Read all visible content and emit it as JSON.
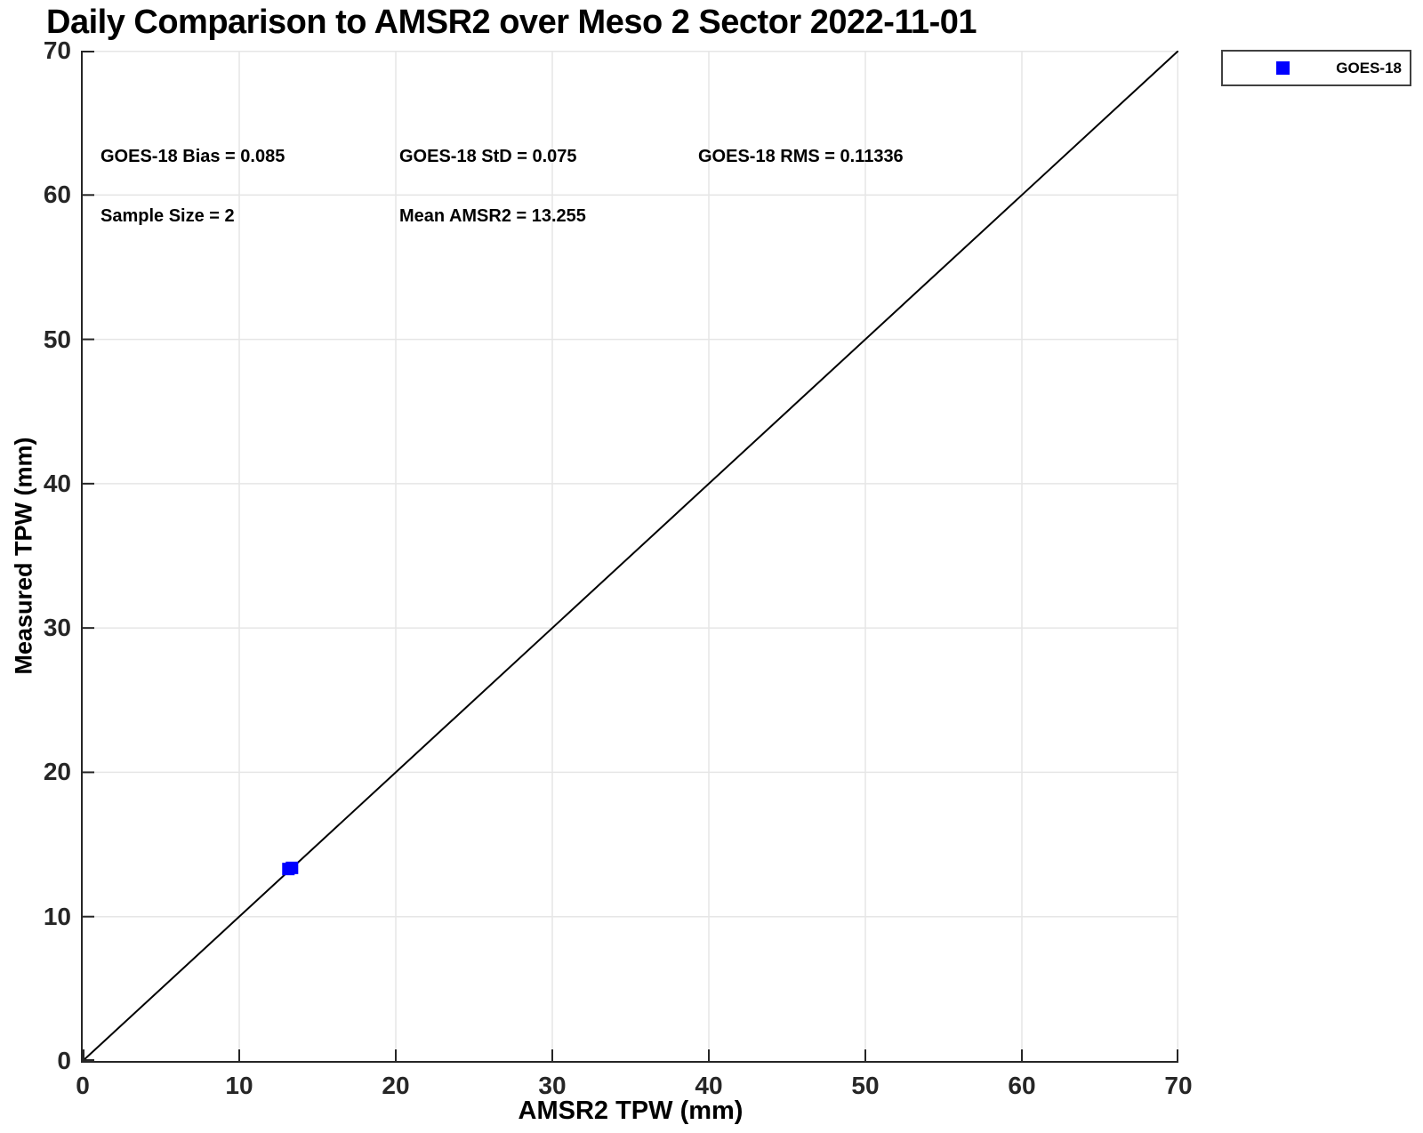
{
  "chart_data": {
    "type": "scatter",
    "title": "Daily Comparison to AMSR2 over Meso 2 Sector 2022-11-01",
    "xlabel": "AMSR2 TPW (mm)",
    "ylabel": "Measured TPW (mm)",
    "xlim": [
      0,
      70
    ],
    "ylim": [
      0,
      70
    ],
    "xticks": [
      0,
      10,
      20,
      30,
      40,
      50,
      60,
      70
    ],
    "yticks": [
      0,
      10,
      20,
      30,
      40,
      50,
      60,
      70
    ],
    "grid": true,
    "series": [
      {
        "name": "GOES-18",
        "marker": "square",
        "color": "#0000ff",
        "points": [
          [
            13.14,
            13.3
          ],
          [
            13.37,
            13.38
          ]
        ]
      }
    ],
    "reference_line": {
      "type": "identity",
      "from": [
        0,
        0
      ],
      "to": [
        70,
        70
      ],
      "color": "#000000"
    },
    "legend": {
      "position": "outside-top-right",
      "entries": [
        {
          "label": "GOES-18",
          "marker": "square",
          "color": "#0000ff"
        }
      ]
    },
    "annotations": {
      "bias": "GOES-18 Bias = 0.085",
      "std": "GOES-18 StD = 0.075",
      "rms": "GOES-18 RMS = 0.11336",
      "sample_size": "Sample Size = 2",
      "mean_amsr2": "Mean AMSR2 = 13.255"
    },
    "colors": {
      "marker": "#0000ff",
      "grid": "#e6e6e6",
      "axis": "#262626",
      "text": "#000000",
      "reference_line": "#000000"
    }
  }
}
